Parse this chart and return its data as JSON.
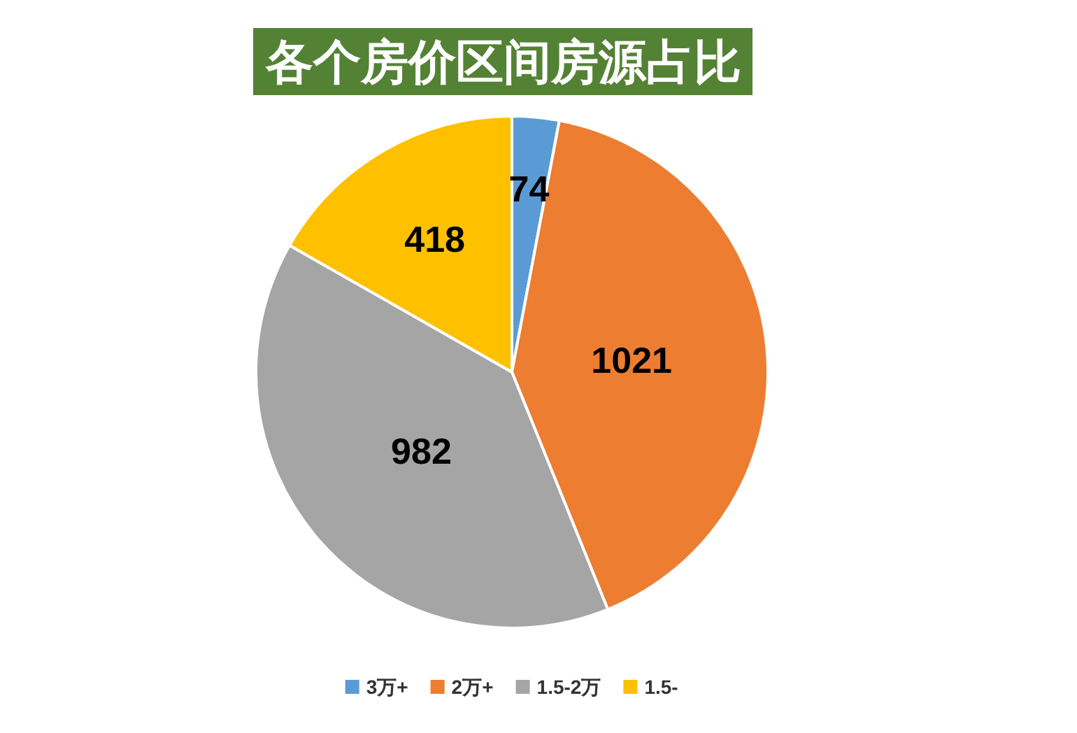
{
  "chart_data": {
    "type": "pie",
    "title": "各个房价区间房源占比",
    "categories": [
      "3万+",
      "2万+",
      "1.5-2万",
      "1.5-"
    ],
    "values": [
      74,
      1021,
      982,
      418
    ],
    "colors": [
      "#5b9bd5",
      "#ed7d31",
      "#a5a5a5",
      "#ffc000"
    ],
    "data_labels": true,
    "legend": "bottom"
  }
}
